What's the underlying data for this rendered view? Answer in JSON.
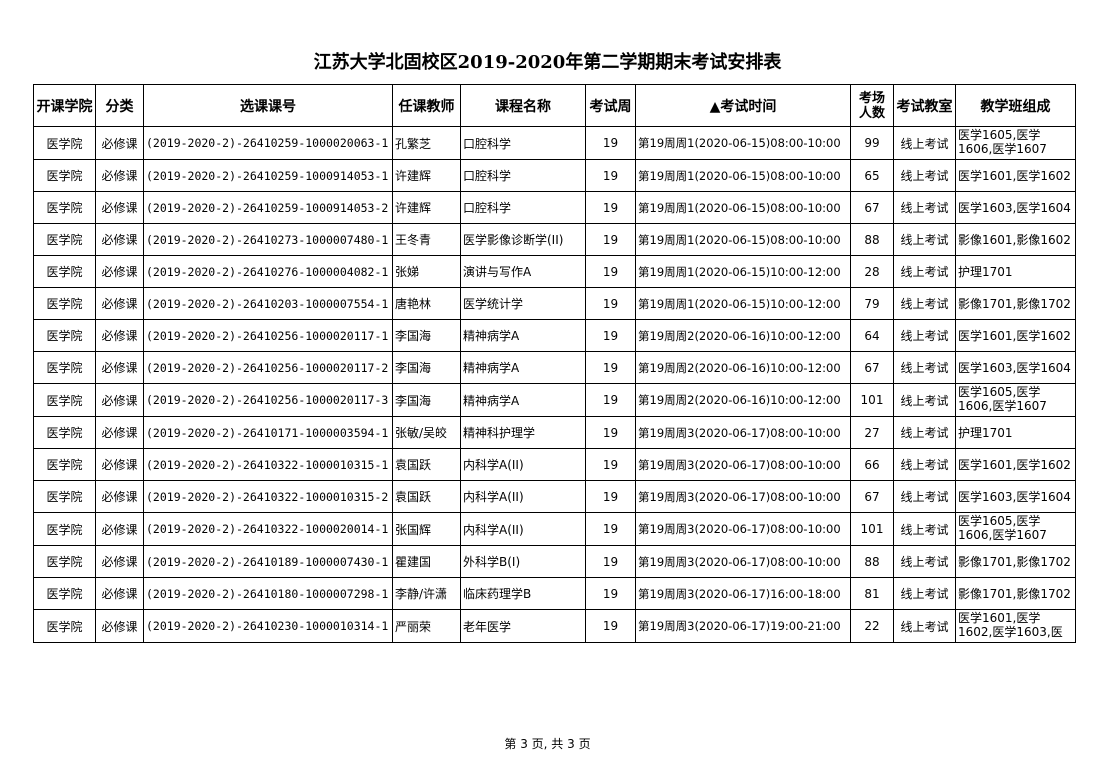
{
  "title": "江苏大学北固校区2019-2020年第二学期期末考试安排表",
  "headers": [
    "开课学院",
    "分类",
    "选课课号",
    "任课教师",
    "课程名称",
    "考试周",
    "▲考试时间",
    "考场人数",
    "考试教室",
    "教学班组成"
  ],
  "rows": [
    [
      "医学院",
      "必修课",
      "(2019-2020-2)-26410259-1000020063-1",
      "孔繁芝",
      "口腔科学",
      "19",
      "第19周周1(2020-06-15)08:00-10:00",
      "99",
      "线上考试",
      "医学1605,医学1606,医学1607"
    ],
    [
      "医学院",
      "必修课",
      "(2019-2020-2)-26410259-1000914053-1",
      "许建辉",
      "口腔科学",
      "19",
      "第19周周1(2020-06-15)08:00-10:00",
      "65",
      "线上考试",
      "医学1601,医学1602"
    ],
    [
      "医学院",
      "必修课",
      "(2019-2020-2)-26410259-1000914053-2",
      "许建辉",
      "口腔科学",
      "19",
      "第19周周1(2020-06-15)08:00-10:00",
      "67",
      "线上考试",
      "医学1603,医学1604"
    ],
    [
      "医学院",
      "必修课",
      "(2019-2020-2)-26410273-1000007480-1",
      "王冬青",
      "医学影像诊断学(II)",
      "19",
      "第19周周1(2020-06-15)08:00-10:00",
      "88",
      "线上考试",
      "影像1601,影像1602"
    ],
    [
      "医学院",
      "必修课",
      "(2019-2020-2)-26410276-1000004082-1",
      "张娣",
      "演讲与写作A",
      "19",
      "第19周周1(2020-06-15)10:00-12:00",
      "28",
      "线上考试",
      "护理1701"
    ],
    [
      "医学院",
      "必修课",
      "(2019-2020-2)-26410203-1000007554-1",
      "唐艳林",
      "医学统计学",
      "19",
      "第19周周1(2020-06-15)10:00-12:00",
      "79",
      "线上考试",
      "影像1701,影像1702"
    ],
    [
      "医学院",
      "必修课",
      "(2019-2020-2)-26410256-1000020117-1",
      "李国海",
      "精神病学A",
      "19",
      "第19周周2(2020-06-16)10:00-12:00",
      "64",
      "线上考试",
      "医学1601,医学1602"
    ],
    [
      "医学院",
      "必修课",
      "(2019-2020-2)-26410256-1000020117-2",
      "李国海",
      "精神病学A",
      "19",
      "第19周周2(2020-06-16)10:00-12:00",
      "67",
      "线上考试",
      "医学1603,医学1604"
    ],
    [
      "医学院",
      "必修课",
      "(2019-2020-2)-26410256-1000020117-3",
      "李国海",
      "精神病学A",
      "19",
      "第19周周2(2020-06-16)10:00-12:00",
      "101",
      "线上考试",
      "医学1605,医学1606,医学1607"
    ],
    [
      "医学院",
      "必修课",
      "(2019-2020-2)-26410171-1000003594-1",
      "张敏/吴皎",
      "精神科护理学",
      "19",
      "第19周周3(2020-06-17)08:00-10:00",
      "27",
      "线上考试",
      "护理1701"
    ],
    [
      "医学院",
      "必修课",
      "(2019-2020-2)-26410322-1000010315-1",
      "袁国跃",
      "内科学A(II)",
      "19",
      "第19周周3(2020-06-17)08:00-10:00",
      "66",
      "线上考试",
      "医学1601,医学1602"
    ],
    [
      "医学院",
      "必修课",
      "(2019-2020-2)-26410322-1000010315-2",
      "袁国跃",
      "内科学A(II)",
      "19",
      "第19周周3(2020-06-17)08:00-10:00",
      "67",
      "线上考试",
      "医学1603,医学1604"
    ],
    [
      "医学院",
      "必修课",
      "(2019-2020-2)-26410322-1000020014-1",
      "张国辉",
      "内科学A(II)",
      "19",
      "第19周周3(2020-06-17)08:00-10:00",
      "101",
      "线上考试",
      "医学1605,医学1606,医学1607"
    ],
    [
      "医学院",
      "必修课",
      "(2019-2020-2)-26410189-1000007430-1",
      "瞿建国",
      "外科学B(I)",
      "19",
      "第19周周3(2020-06-17)08:00-10:00",
      "88",
      "线上考试",
      "影像1701,影像1702"
    ],
    [
      "医学院",
      "必修课",
      "(2019-2020-2)-26410180-1000007298-1",
      "李静/许潇",
      "临床药理学B",
      "19",
      "第19周周3(2020-06-17)16:00-18:00",
      "81",
      "线上考试",
      "影像1701,影像1702"
    ],
    [
      "医学院",
      "必修课",
      "(2019-2020-2)-26410230-1000010314-1",
      "严丽荣",
      "老年医学",
      "19",
      "第19周周3(2020-06-17)19:00-21:00",
      "22",
      "线上考试",
      "医学1601,医学1602,医学1603,医"
    ]
  ],
  "footer": "第 3 页, 共 3 页"
}
